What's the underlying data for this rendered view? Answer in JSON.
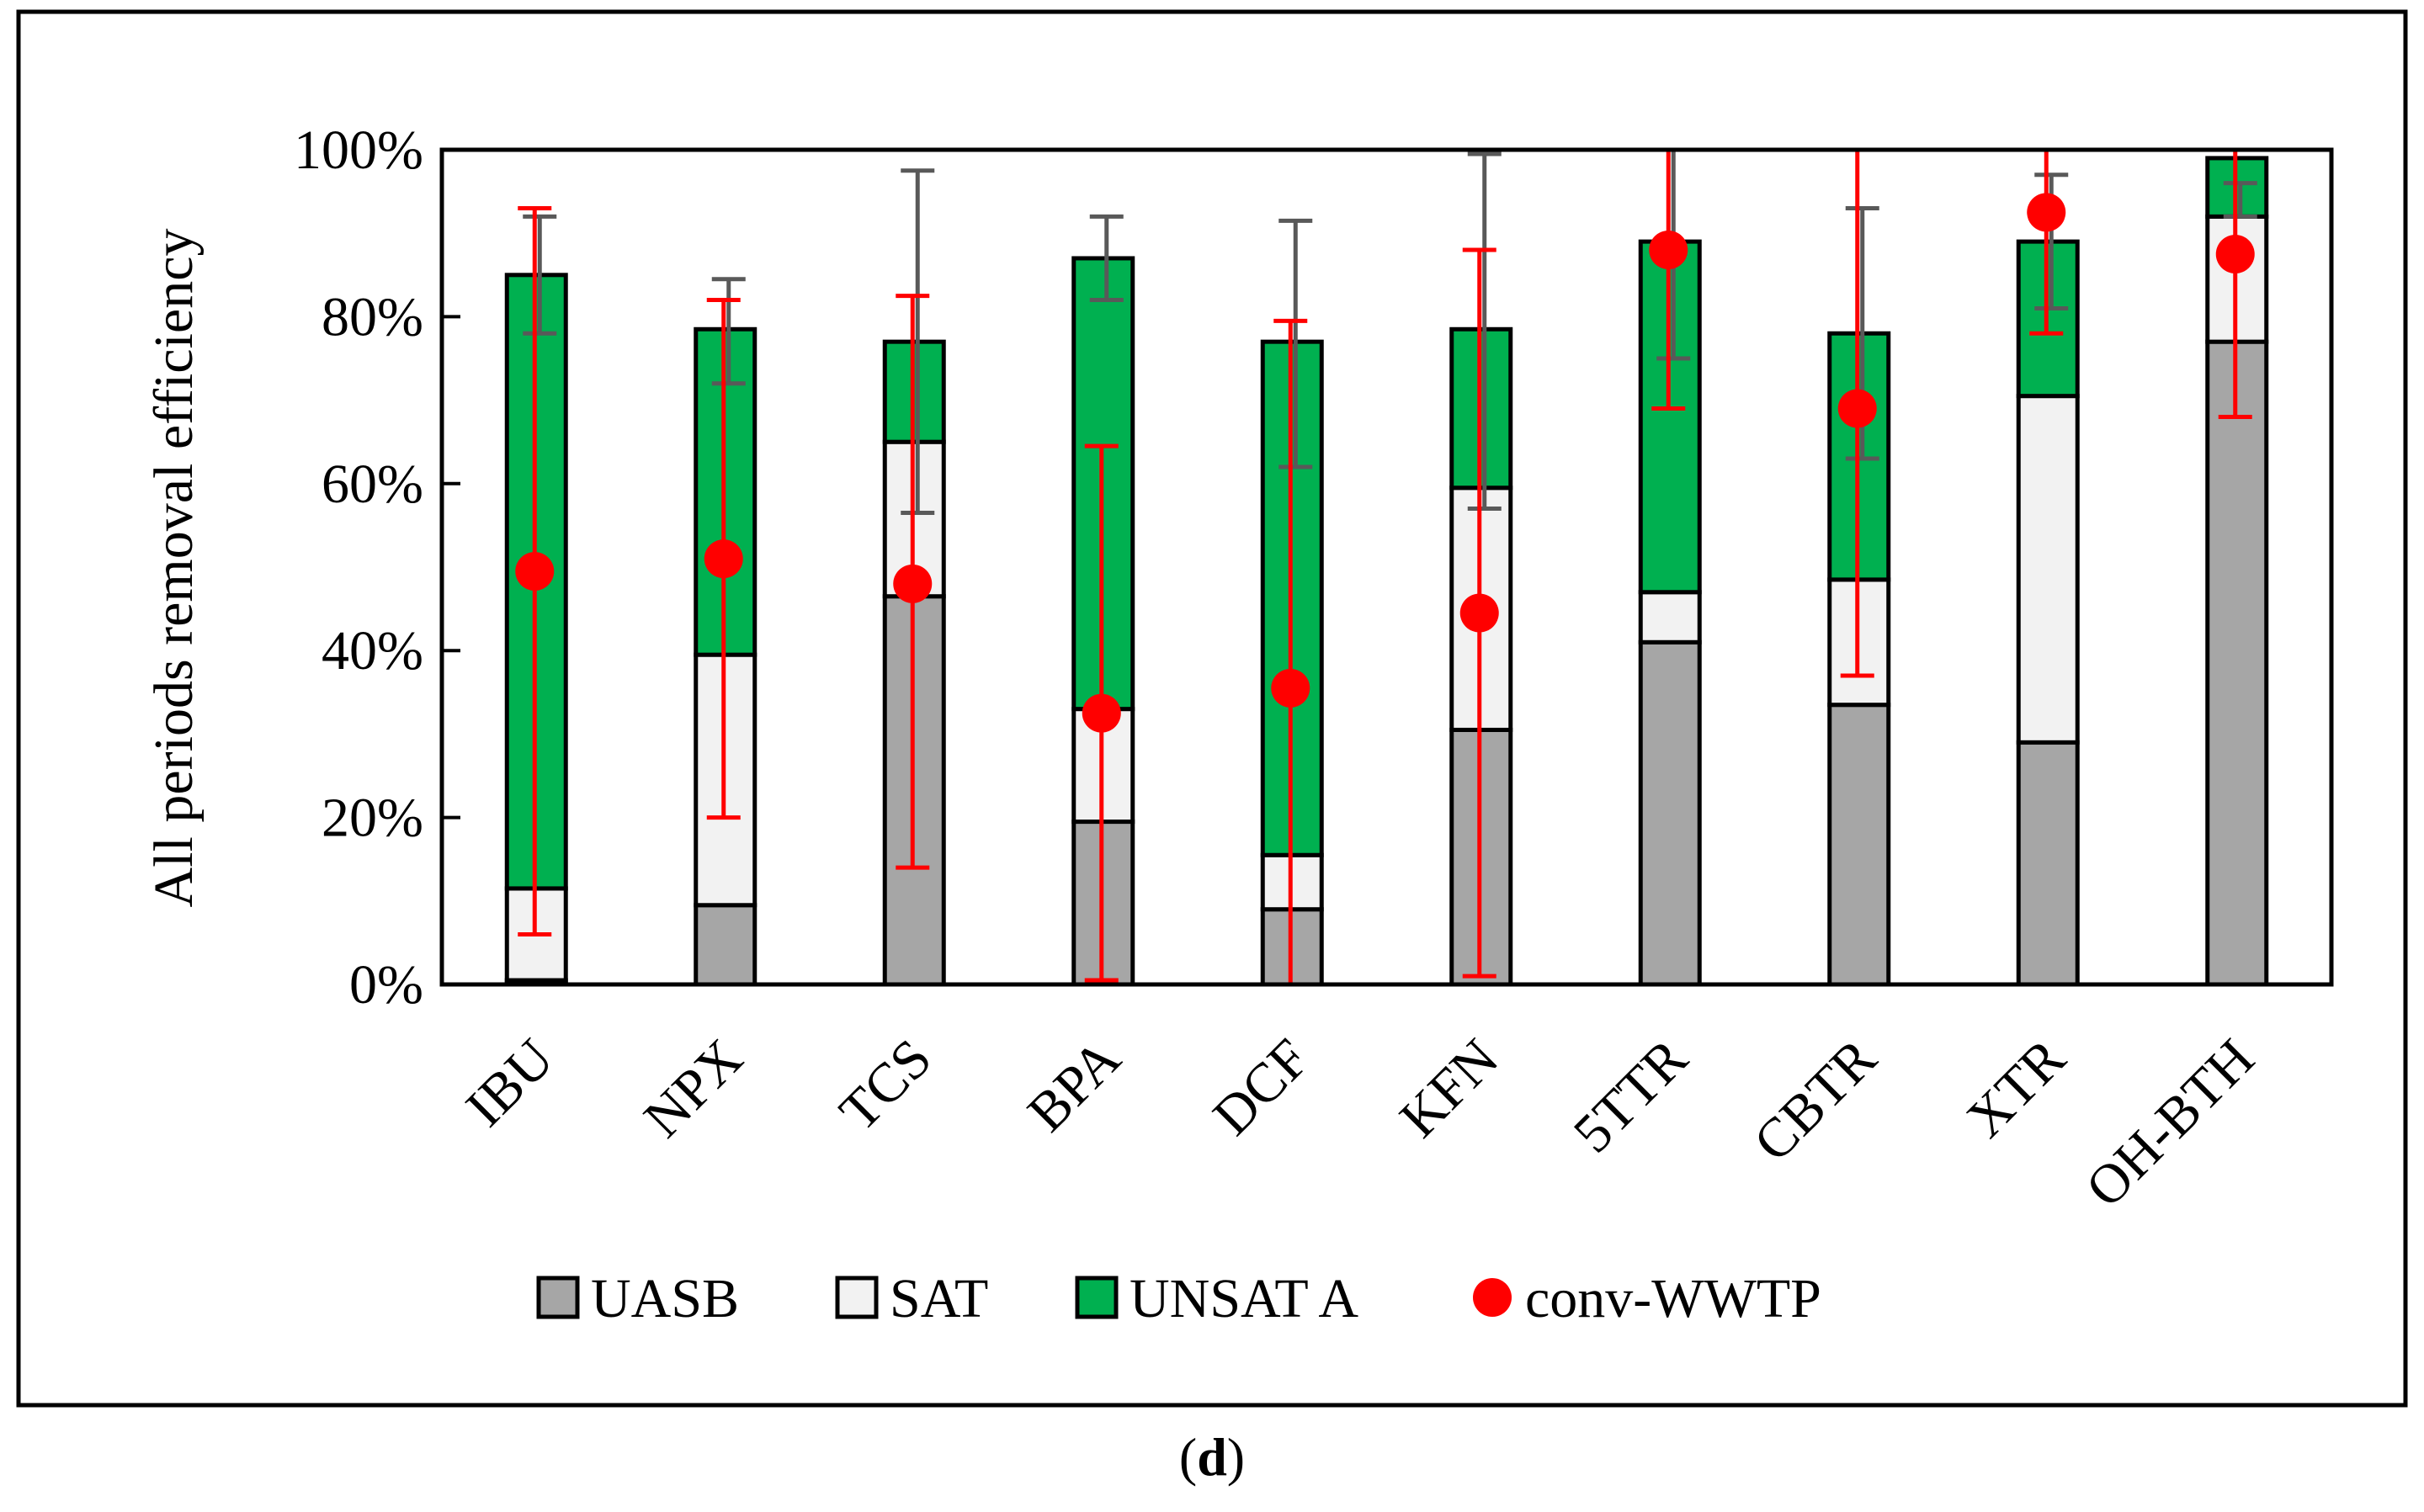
{
  "chart_data": {
    "type": "bar",
    "stacked": true,
    "ylabel": "All periods removal efficiency",
    "xlabel": "",
    "ylim": [
      0,
      100
    ],
    "yticks": [
      "0%",
      "20%",
      "40%",
      "60%",
      "80%",
      "100%"
    ],
    "categories": [
      "IBU",
      "NPX",
      "TCS",
      "BPA",
      "DCF",
      "KFN",
      "5TTR",
      "CBTR",
      "XTR",
      "OH-BTH"
    ],
    "series": [
      {
        "name": "UASB",
        "color": "#a6a6a6",
        "values": [
          0.5,
          9.5,
          46.5,
          19.5,
          9.0,
          30.5,
          41.0,
          33.5,
          29.0,
          77.0
        ]
      },
      {
        "name": "SAT",
        "color": "#f2f2f2",
        "values": [
          11.0,
          30.0,
          18.5,
          13.5,
          6.5,
          29.0,
          6.0,
          15.0,
          41.5,
          15.0
        ]
      },
      {
        "name": "UNSAT A",
        "color": "#00b050",
        "values": [
          73.5,
          39.0,
          12.0,
          54.0,
          61.5,
          19.0,
          42.0,
          29.5,
          18.5,
          7.0
        ]
      }
    ],
    "stack_error": {
      "color": "#595959",
      "low": [
        78,
        72,
        56.5,
        82,
        62,
        57,
        75,
        63,
        81,
        92
      ],
      "high": [
        92,
        84.5,
        97.5,
        92,
        91.5,
        99.5,
        100,
        93,
        97,
        96
      ]
    },
    "scatter": {
      "name": "conv-WWTP",
      "color": "#ff0000",
      "values": [
        49.5,
        51,
        48,
        32.5,
        35.5,
        44.5,
        88,
        69,
        92.5,
        87.5
      ],
      "err_low": [
        6,
        20,
        14,
        0.5,
        0,
        1,
        69,
        37,
        78,
        68
      ],
      "err_high": [
        93,
        82,
        82.5,
        64.5,
        79.5,
        88,
        100,
        100,
        100,
        100
      ]
    },
    "legend": [
      "UASB",
      "SAT",
      "UNSAT A",
      "conv-WWTP"
    ],
    "legend_position": "bottom"
  },
  "caption": {
    "open": "(",
    "letter": "d",
    "close": ")"
  }
}
